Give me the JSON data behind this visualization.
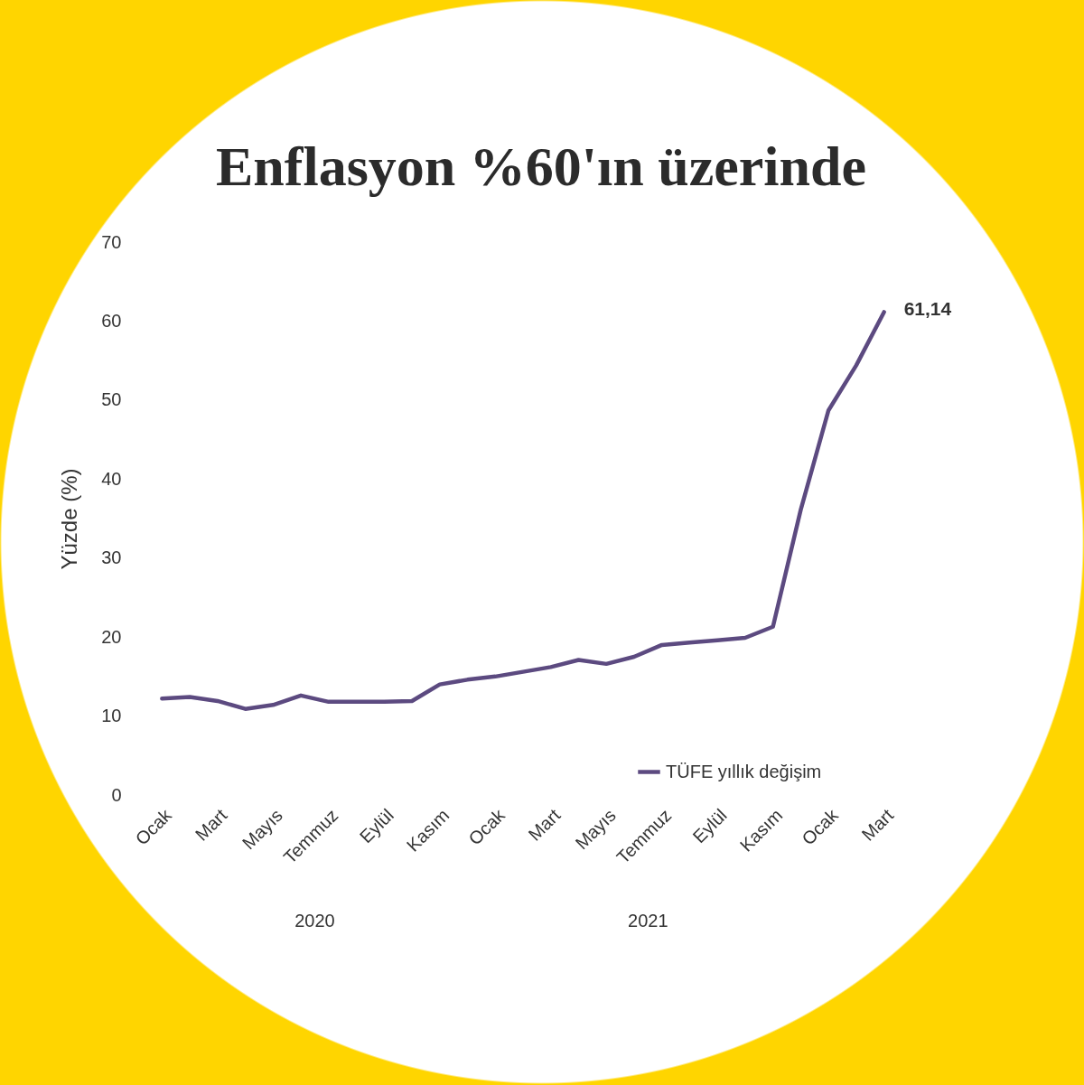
{
  "chart_data": {
    "type": "line",
    "title": "Enflasyon %60'ın üzerinde",
    "ylabel": "Yüzde (%)",
    "categories": [
      "Ocak",
      null,
      "Mart",
      null,
      "Mayıs",
      null,
      "Temmuz",
      null,
      "Eylül",
      null,
      "Kasım",
      null,
      "Ocak",
      null,
      "Mart",
      null,
      "Mayıs",
      null,
      "Temmuz",
      null,
      "Eylül",
      null,
      "Kasım",
      null,
      "Ocak",
      null,
      "Mart"
    ],
    "series": [
      {
        "name": "TÜFE yıllık değişim",
        "color": "#5c4a80",
        "values": [
          12.2,
          12.4,
          11.9,
          10.9,
          11.4,
          12.6,
          11.8,
          11.8,
          11.8,
          11.9,
          14.0,
          14.6,
          15.0,
          15.6,
          16.2,
          17.1,
          16.6,
          17.5,
          19.0,
          19.3,
          19.6,
          19.9,
          21.3,
          36.1,
          48.7,
          54.4,
          61.14
        ],
        "value_labels": [
          null,
          null,
          null,
          null,
          null,
          null,
          null,
          null,
          null,
          null,
          null,
          null,
          null,
          null,
          null,
          null,
          null,
          null,
          null,
          null,
          null,
          null,
          null,
          null,
          null,
          null,
          "61,14"
        ]
      }
    ],
    "annotations": [
      "2020",
      "2021"
    ],
    "ylim": [
      0,
      70
    ],
    "yticks": [
      0,
      10,
      20,
      30,
      40,
      50,
      60,
      70
    ],
    "grid": false,
    "legend": "bottom right",
    "marker": "none",
    "line_style": "solid"
  }
}
